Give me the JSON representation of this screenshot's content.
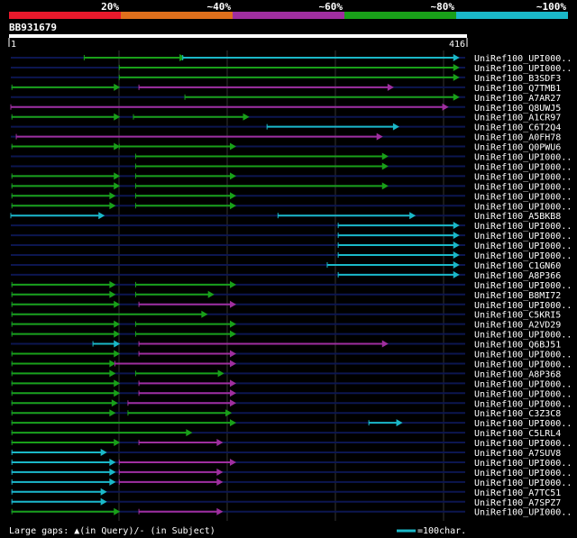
{
  "chart_data": {
    "type": "alignment-overview",
    "query_id": "BB931679",
    "query_length": 416,
    "ruler_start": "1",
    "ruler_end": "416",
    "identity_legend": [
      {
        "label": "20%",
        "color": "#e8192c"
      },
      {
        "label": "~40%",
        "color": "#e0701c"
      },
      {
        "label": "~60%",
        "color": "#9f2e9f"
      },
      {
        "label": "~80%",
        "color": "#19a019"
      },
      {
        "label": "~100%",
        "color": "#1ab8c8"
      }
    ],
    "colors": {
      "green": "#19a019",
      "cyan": "#1ab8c8",
      "magenta": "#9f2e9f",
      "track": "#0c1650",
      "background": "#000000"
    },
    "hits": [
      {
        "name": "UniRef100_UPI000..",
        "segs": [
          [
            68,
            160,
            "green"
          ],
          [
            158,
            410,
            "cyan"
          ]
        ]
      },
      {
        "name": "UniRef100_UPI000..",
        "segs": [
          [
            100,
            410,
            "green"
          ]
        ]
      },
      {
        "name": "UniRef100_B3SDF3",
        "segs": [
          [
            100,
            410,
            "green"
          ]
        ]
      },
      {
        "name": "UniRef100_Q7TMB1",
        "segs": [
          [
            2,
            100,
            "green"
          ],
          [
            118,
            350,
            "magenta"
          ]
        ]
      },
      {
        "name": "UniRef100_A7AR27",
        "segs": [
          [
            160,
            410,
            "green"
          ]
        ]
      },
      {
        "name": "UniRef100_Q8UWJ5",
        "segs": [
          [
            1,
            400,
            "magenta"
          ]
        ]
      },
      {
        "name": "UniRef100_A1CR97",
        "segs": [
          [
            2,
            100,
            "green"
          ],
          [
            113,
            218,
            "green"
          ]
        ]
      },
      {
        "name": "UniRef100_C6T2Q4",
        "segs": [
          [
            235,
            355,
            "cyan"
          ]
        ]
      },
      {
        "name": "UniRef100_A0FH78",
        "segs": [
          [
            6,
            340,
            "magenta"
          ]
        ]
      },
      {
        "name": "UniRef100_Q0PWU6",
        "segs": [
          [
            2,
            100,
            "green"
          ],
          [
            100,
            206,
            "green"
          ]
        ]
      },
      {
        "name": "UniRef100_UPI000..",
        "segs": [
          [
            115,
            345,
            "green"
          ]
        ]
      },
      {
        "name": "UniRef100_UPI000..",
        "segs": [
          [
            115,
            345,
            "green"
          ]
        ]
      },
      {
        "name": "UniRef100_UPI000..",
        "segs": [
          [
            2,
            100,
            "green"
          ],
          [
            115,
            206,
            "green"
          ]
        ]
      },
      {
        "name": "UniRef100_UPI000..",
        "segs": [
          [
            2,
            100,
            "green"
          ],
          [
            115,
            345,
            "green"
          ]
        ]
      },
      {
        "name": "UniRef100_UPI000..",
        "segs": [
          [
            2,
            96,
            "green"
          ],
          [
            115,
            206,
            "green"
          ]
        ]
      },
      {
        "name": "UniRef100_UPI000..",
        "segs": [
          [
            2,
            96,
            "green"
          ],
          [
            115,
            206,
            "green"
          ]
        ]
      },
      {
        "name": "UniRef100_A5BKB8",
        "segs": [
          [
            1,
            86,
            "cyan"
          ],
          [
            245,
            370,
            "cyan"
          ]
        ]
      },
      {
        "name": "UniRef100_UPI000..",
        "segs": [
          [
            300,
            410,
            "cyan"
          ]
        ]
      },
      {
        "name": "UniRef100_UPI000..",
        "segs": [
          [
            300,
            410,
            "cyan"
          ]
        ]
      },
      {
        "name": "UniRef100_UPI000..",
        "segs": [
          [
            300,
            410,
            "cyan"
          ]
        ]
      },
      {
        "name": "UniRef100_UPI000..",
        "segs": [
          [
            300,
            410,
            "cyan"
          ]
        ]
      },
      {
        "name": "UniRef100_C1GN60",
        "segs": [
          [
            290,
            410,
            "cyan"
          ]
        ]
      },
      {
        "name": "UniRef100_A8P366",
        "segs": [
          [
            300,
            410,
            "cyan"
          ]
        ]
      },
      {
        "name": "UniRef100_UPI000..",
        "segs": [
          [
            2,
            96,
            "green"
          ],
          [
            115,
            206,
            "green"
          ]
        ]
      },
      {
        "name": "UniRef100_B8MI72",
        "segs": [
          [
            2,
            96,
            "green"
          ],
          [
            115,
            186,
            "green"
          ]
        ]
      },
      {
        "name": "UniRef100_UPI000..",
        "segs": [
          [
            2,
            100,
            "green"
          ],
          [
            118,
            206,
            "magenta"
          ]
        ]
      },
      {
        "name": "UniRef100_C5KRI5",
        "segs": [
          [
            2,
            180,
            "green"
          ]
        ]
      },
      {
        "name": "UniRef100_A2VD29",
        "segs": [
          [
            2,
            100,
            "green"
          ],
          [
            115,
            206,
            "green"
          ]
        ]
      },
      {
        "name": "UniRef100_UPI000..",
        "segs": [
          [
            2,
            100,
            "green"
          ],
          [
            115,
            206,
            "green"
          ]
        ]
      },
      {
        "name": "UniRef100_Q6BJ51",
        "segs": [
          [
            76,
            100,
            "cyan"
          ],
          [
            118,
            345,
            "magenta"
          ]
        ]
      },
      {
        "name": "UniRef100_UPI000..",
        "segs": [
          [
            2,
            100,
            "green"
          ],
          [
            118,
            206,
            "magenta"
          ]
        ]
      },
      {
        "name": "UniRef100_UPI000..",
        "segs": [
          [
            2,
            96,
            "green"
          ],
          [
            96,
            206,
            "magenta"
          ]
        ]
      },
      {
        "name": "UniRef100_A8P368",
        "segs": [
          [
            2,
            96,
            "green"
          ],
          [
            115,
            195,
            "green"
          ]
        ]
      },
      {
        "name": "UniRef100_UPI000..",
        "segs": [
          [
            2,
            100,
            "green"
          ],
          [
            118,
            206,
            "magenta"
          ]
        ]
      },
      {
        "name": "UniRef100_UPI000..",
        "segs": [
          [
            2,
            100,
            "green"
          ],
          [
            118,
            206,
            "magenta"
          ]
        ]
      },
      {
        "name": "UniRef100_UPI000..",
        "segs": [
          [
            2,
            98,
            "green"
          ],
          [
            108,
            206,
            "magenta"
          ]
        ]
      },
      {
        "name": "UniRef100_C3Z3C8",
        "segs": [
          [
            2,
            96,
            "green"
          ],
          [
            108,
            202,
            "green"
          ]
        ]
      },
      {
        "name": "UniRef100_UPI000..",
        "segs": [
          [
            2,
            206,
            "green"
          ],
          [
            328,
            358,
            "cyan"
          ]
        ]
      },
      {
        "name": "UniRef100_C5LRL4",
        "segs": [
          [
            2,
            166,
            "green"
          ]
        ]
      },
      {
        "name": "UniRef100_UPI000..",
        "segs": [
          [
            2,
            100,
            "green"
          ],
          [
            118,
            194,
            "magenta"
          ]
        ]
      },
      {
        "name": "UniRef100_A7SUV8",
        "segs": [
          [
            2,
            88,
            "cyan"
          ]
        ]
      },
      {
        "name": "UniRef100_UPI000..",
        "segs": [
          [
            2,
            96,
            "cyan"
          ],
          [
            100,
            206,
            "magenta"
          ]
        ]
      },
      {
        "name": "UniRef100_UPI000..",
        "segs": [
          [
            2,
            96,
            "cyan"
          ],
          [
            100,
            194,
            "magenta"
          ]
        ]
      },
      {
        "name": "UniRef100_UPI000..",
        "segs": [
          [
            2,
            96,
            "cyan"
          ],
          [
            100,
            194,
            "magenta"
          ]
        ]
      },
      {
        "name": "UniRef100_A7TC51",
        "segs": [
          [
            2,
            88,
            "cyan"
          ]
        ]
      },
      {
        "name": "UniRef100_A7SPZ7",
        "segs": [
          [
            2,
            88,
            "cyan"
          ]
        ]
      },
      {
        "name": "UniRef100_UPI000..",
        "segs": [
          [
            2,
            100,
            "green"
          ],
          [
            118,
            194,
            "magenta"
          ]
        ]
      }
    ],
    "footer": {
      "gaps_text": "Large gaps: ▲(in Query)/- (in Subject)",
      "scale_text": "=100char."
    }
  }
}
